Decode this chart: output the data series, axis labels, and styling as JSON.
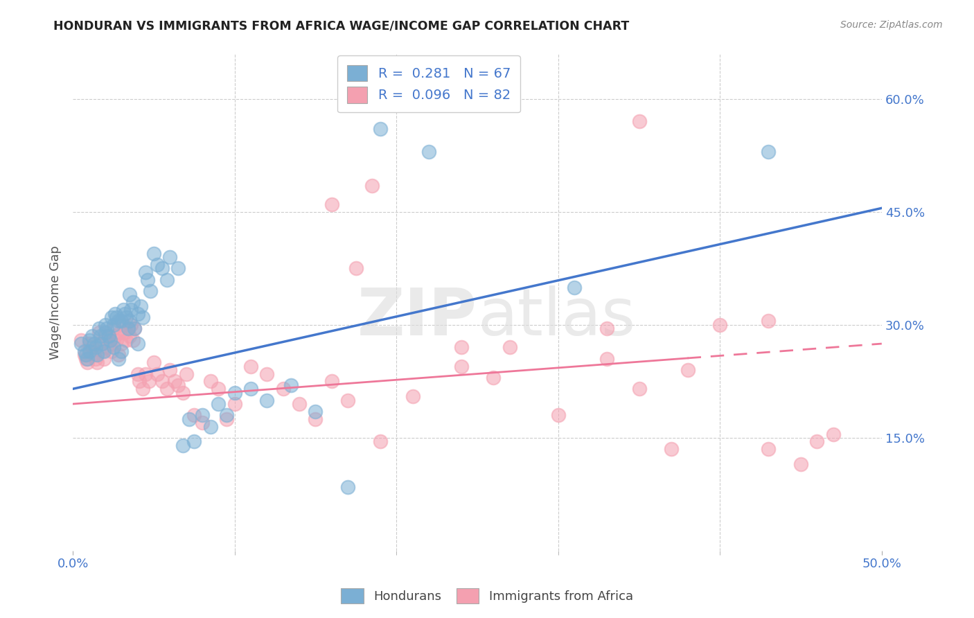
{
  "title": "HONDURAN VS IMMIGRANTS FROM AFRICA WAGE/INCOME GAP CORRELATION CHART",
  "source": "Source: ZipAtlas.com",
  "ylabel": "Wage/Income Gap",
  "xlim": [
    0.0,
    0.5
  ],
  "ylim": [
    0.0,
    0.66
  ],
  "xticks": [
    0.0,
    0.5
  ],
  "xtick_labels": [
    "0.0%",
    "50.0%"
  ],
  "xticks_minor": [
    0.1,
    0.2,
    0.3,
    0.4
  ],
  "yticks": [
    0.15,
    0.3,
    0.45,
    0.6
  ],
  "ytick_labels": [
    "15.0%",
    "30.0%",
    "45.0%",
    "60.0%"
  ],
  "blue_R": 0.281,
  "blue_N": 67,
  "pink_R": 0.096,
  "pink_N": 82,
  "blue_dot_color": "#7BAFD4",
  "pink_dot_color": "#F4A0B0",
  "blue_line_color": "#4477CC",
  "pink_line_color": "#EE7799",
  "legend_label_blue": "Hondurans",
  "legend_label_pink": "Immigrants from Africa",
  "watermark_zip": "ZIP",
  "watermark_atlas": "atlas",
  "blue_trend_x": [
    0.0,
    0.5
  ],
  "blue_trend_y": [
    0.215,
    0.455
  ],
  "pink_trend_x": [
    0.0,
    0.5
  ],
  "pink_trend_y": [
    0.195,
    0.275
  ],
  "blue_points_x": [
    0.005,
    0.007,
    0.008,
    0.009,
    0.01,
    0.01,
    0.012,
    0.013,
    0.014,
    0.015,
    0.016,
    0.017,
    0.018,
    0.019,
    0.02,
    0.02,
    0.021,
    0.022,
    0.023,
    0.024,
    0.025,
    0.025,
    0.026,
    0.027,
    0.028,
    0.028,
    0.03,
    0.03,
    0.031,
    0.032,
    0.033,
    0.034,
    0.035,
    0.035,
    0.036,
    0.037,
    0.038,
    0.04,
    0.04,
    0.042,
    0.043,
    0.045,
    0.046,
    0.048,
    0.05,
    0.052,
    0.055,
    0.058,
    0.06,
    0.065,
    0.068,
    0.072,
    0.075,
    0.08,
    0.085,
    0.09,
    0.095,
    0.1,
    0.11,
    0.12,
    0.135,
    0.15,
    0.17,
    0.19,
    0.22,
    0.31,
    0.43
  ],
  "blue_points_y": [
    0.275,
    0.265,
    0.26,
    0.255,
    0.28,
    0.265,
    0.285,
    0.275,
    0.27,
    0.26,
    0.295,
    0.285,
    0.275,
    0.265,
    0.3,
    0.29,
    0.295,
    0.285,
    0.28,
    0.31,
    0.3,
    0.27,
    0.315,
    0.31,
    0.305,
    0.255,
    0.305,
    0.265,
    0.32,
    0.315,
    0.31,
    0.295,
    0.34,
    0.305,
    0.32,
    0.33,
    0.295,
    0.315,
    0.275,
    0.325,
    0.31,
    0.37,
    0.36,
    0.345,
    0.395,
    0.38,
    0.375,
    0.36,
    0.39,
    0.375,
    0.14,
    0.175,
    0.145,
    0.18,
    0.165,
    0.195,
    0.18,
    0.21,
    0.215,
    0.2,
    0.22,
    0.185,
    0.085,
    0.56,
    0.53,
    0.35,
    0.53
  ],
  "pink_points_x": [
    0.005,
    0.007,
    0.008,
    0.009,
    0.01,
    0.011,
    0.012,
    0.013,
    0.014,
    0.015,
    0.016,
    0.017,
    0.018,
    0.019,
    0.02,
    0.021,
    0.022,
    0.023,
    0.024,
    0.025,
    0.026,
    0.027,
    0.028,
    0.029,
    0.03,
    0.031,
    0.032,
    0.033,
    0.034,
    0.035,
    0.036,
    0.037,
    0.038,
    0.04,
    0.041,
    0.043,
    0.045,
    0.047,
    0.05,
    0.052,
    0.055,
    0.058,
    0.06,
    0.063,
    0.065,
    0.068,
    0.07,
    0.075,
    0.08,
    0.085,
    0.09,
    0.095,
    0.1,
    0.11,
    0.12,
    0.13,
    0.14,
    0.15,
    0.16,
    0.17,
    0.19,
    0.21,
    0.24,
    0.27,
    0.3,
    0.33,
    0.35,
    0.37,
    0.4,
    0.43,
    0.35,
    0.16,
    0.175,
    0.185,
    0.24,
    0.26,
    0.33,
    0.38,
    0.43,
    0.45,
    0.46,
    0.47
  ],
  "pink_points_y": [
    0.28,
    0.26,
    0.255,
    0.25,
    0.275,
    0.265,
    0.27,
    0.26,
    0.255,
    0.25,
    0.29,
    0.275,
    0.265,
    0.255,
    0.285,
    0.27,
    0.285,
    0.275,
    0.265,
    0.295,
    0.285,
    0.28,
    0.26,
    0.29,
    0.275,
    0.3,
    0.29,
    0.28,
    0.295,
    0.285,
    0.3,
    0.28,
    0.295,
    0.235,
    0.225,
    0.215,
    0.235,
    0.225,
    0.25,
    0.235,
    0.225,
    0.215,
    0.24,
    0.225,
    0.22,
    0.21,
    0.235,
    0.18,
    0.17,
    0.225,
    0.215,
    0.175,
    0.195,
    0.245,
    0.235,
    0.215,
    0.195,
    0.175,
    0.225,
    0.2,
    0.145,
    0.205,
    0.245,
    0.27,
    0.18,
    0.295,
    0.215,
    0.135,
    0.3,
    0.135,
    0.57,
    0.46,
    0.375,
    0.485,
    0.27,
    0.23,
    0.255,
    0.24,
    0.305,
    0.115,
    0.145,
    0.155
  ]
}
